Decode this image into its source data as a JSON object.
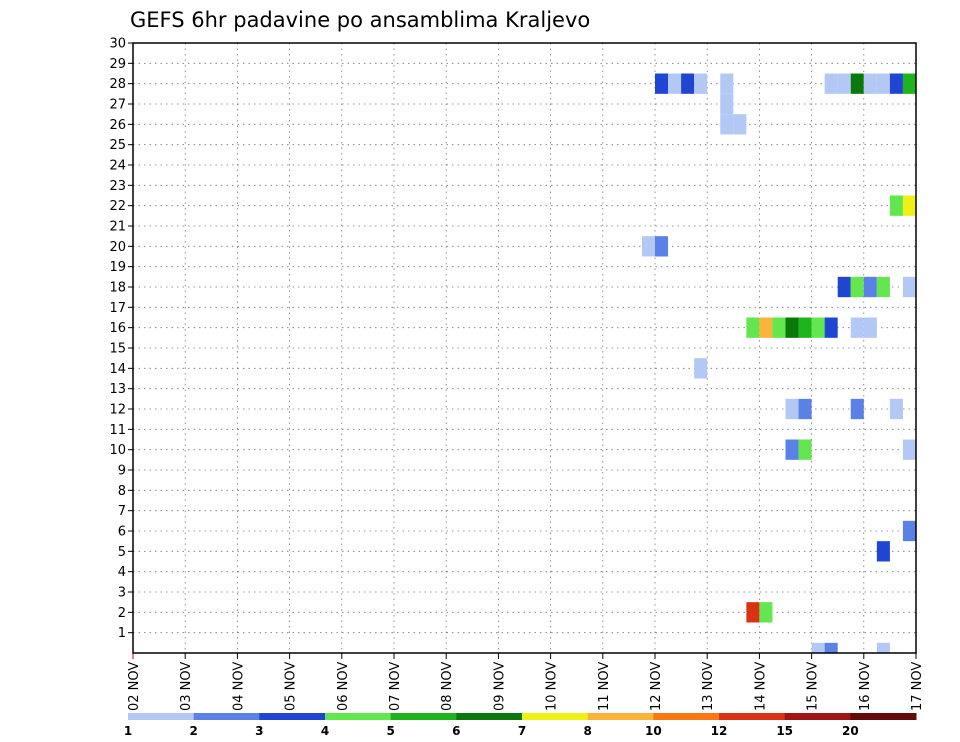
{
  "chart_data": {
    "type": "heatmap",
    "title": "GEFS 6hr padavine po ansamblima Kraljevo",
    "xlabel": "",
    "ylabel": "",
    "x_tick_labels": [
      "02 NOV",
      "03 NOV",
      "04 NOV",
      "05 NOV",
      "06 NOV",
      "07 NOV",
      "08 NOV",
      "09 NOV",
      "10 NOV",
      "11 NOV",
      "12 NOV",
      "13 NOV",
      "14 NOV",
      "15 NOV",
      "16 NOV",
      "17 NOV"
    ],
    "y_tick_labels": [
      "1",
      "2",
      "3",
      "4",
      "5",
      "6",
      "7",
      "8",
      "9",
      "10",
      "11",
      "12",
      "13",
      "14",
      "15",
      "16",
      "17",
      "18",
      "19",
      "20",
      "21",
      "22",
      "23",
      "24",
      "25",
      "26",
      "27",
      "28",
      "29",
      "30"
    ],
    "ylim": [
      0,
      30
    ],
    "grid": true,
    "grid_style": "dotted",
    "legend": {
      "placement": "bottom",
      "labels": [
        "1",
        "2",
        "3",
        "4",
        "5",
        "6",
        "7",
        "8",
        "10",
        "12",
        "15",
        "20"
      ],
      "colors": [
        "#b4c8f5",
        "#5a82e6",
        "#1e46d2",
        "#64e650",
        "#1eb41e",
        "#0a780a",
        "#f0f014",
        "#fab43c",
        "#fa7814",
        "#dc3214",
        "#a01414",
        "#640a0a"
      ]
    },
    "cells": [
      {
        "day": 12.0,
        "member": 28,
        "color": "#1e46d2"
      },
      {
        "day": 12.25,
        "member": 28,
        "color": "#b4c8f5"
      },
      {
        "day": 12.5,
        "member": 28,
        "color": "#1e46d2"
      },
      {
        "day": 12.75,
        "member": 28,
        "color": "#b4c8f5"
      },
      {
        "day": 13.25,
        "member": 28,
        "color": "#b4c8f5"
      },
      {
        "day": 13.25,
        "member": 27,
        "color": "#b4c8f5"
      },
      {
        "day": 13.25,
        "member": 26,
        "color": "#b4c8f5"
      },
      {
        "day": 13.5,
        "member": 26,
        "color": "#b4c8f5"
      },
      {
        "day": 15.25,
        "member": 28,
        "color": "#b4c8f5"
      },
      {
        "day": 15.5,
        "member": 28,
        "color": "#b4c8f5"
      },
      {
        "day": 15.75,
        "member": 28,
        "color": "#0a780a"
      },
      {
        "day": 16.0,
        "member": 28,
        "color": "#b4c8f5"
      },
      {
        "day": 16.25,
        "member": 28,
        "color": "#b4c8f5"
      },
      {
        "day": 16.5,
        "member": 28,
        "color": "#1e46d2"
      },
      {
        "day": 16.75,
        "member": 28,
        "color": "#1eb41e"
      },
      {
        "day": 16.5,
        "member": 22,
        "color": "#64e650"
      },
      {
        "day": 16.75,
        "member": 22,
        "color": "#f0f014"
      },
      {
        "day": 11.75,
        "member": 20,
        "color": "#b4c8f5"
      },
      {
        "day": 12.0,
        "member": 20,
        "color": "#5a82e6"
      },
      {
        "day": 15.5,
        "member": 18,
        "color": "#1e46d2"
      },
      {
        "day": 15.75,
        "member": 18,
        "color": "#64e650"
      },
      {
        "day": 16.0,
        "member": 18,
        "color": "#5a82e6"
      },
      {
        "day": 16.25,
        "member": 18,
        "color": "#64e650"
      },
      {
        "day": 16.75,
        "member": 18,
        "color": "#b4c8f5"
      },
      {
        "day": 13.75,
        "member": 16,
        "color": "#64e650"
      },
      {
        "day": 14.0,
        "member": 16,
        "color": "#fab43c"
      },
      {
        "day": 14.25,
        "member": 16,
        "color": "#64e650"
      },
      {
        "day": 14.5,
        "member": 16,
        "color": "#0a780a"
      },
      {
        "day": 14.75,
        "member": 16,
        "color": "#1eb41e"
      },
      {
        "day": 15.0,
        "member": 16,
        "color": "#64e650"
      },
      {
        "day": 15.25,
        "member": 16,
        "color": "#1e46d2"
      },
      {
        "day": 15.75,
        "member": 16,
        "color": "#b4c8f5"
      },
      {
        "day": 16.0,
        "member": 16,
        "color": "#b4c8f5"
      },
      {
        "day": 12.75,
        "member": 14,
        "color": "#b4c8f5"
      },
      {
        "day": 14.5,
        "member": 12,
        "color": "#b4c8f5"
      },
      {
        "day": 14.75,
        "member": 12,
        "color": "#5a82e6"
      },
      {
        "day": 15.75,
        "member": 12,
        "color": "#5a82e6"
      },
      {
        "day": 16.5,
        "member": 12,
        "color": "#b4c8f5"
      },
      {
        "day": 14.5,
        "member": 10,
        "color": "#5a82e6"
      },
      {
        "day": 14.75,
        "member": 10,
        "color": "#64e650"
      },
      {
        "day": 16.75,
        "member": 10,
        "color": "#b4c8f5"
      },
      {
        "day": 16.75,
        "member": 6,
        "color": "#5a82e6"
      },
      {
        "day": 16.25,
        "member": 5,
        "color": "#1e46d2"
      },
      {
        "day": 13.75,
        "member": 2,
        "color": "#dc3214"
      },
      {
        "day": 14.0,
        "member": 2,
        "color": "#64e650"
      },
      {
        "day": 15.0,
        "member": 0,
        "color": "#b4c8f5"
      },
      {
        "day": 15.25,
        "member": 0,
        "color": "#5a82e6"
      },
      {
        "day": 16.25,
        "member": 0,
        "color": "#b4c8f5"
      }
    ]
  }
}
